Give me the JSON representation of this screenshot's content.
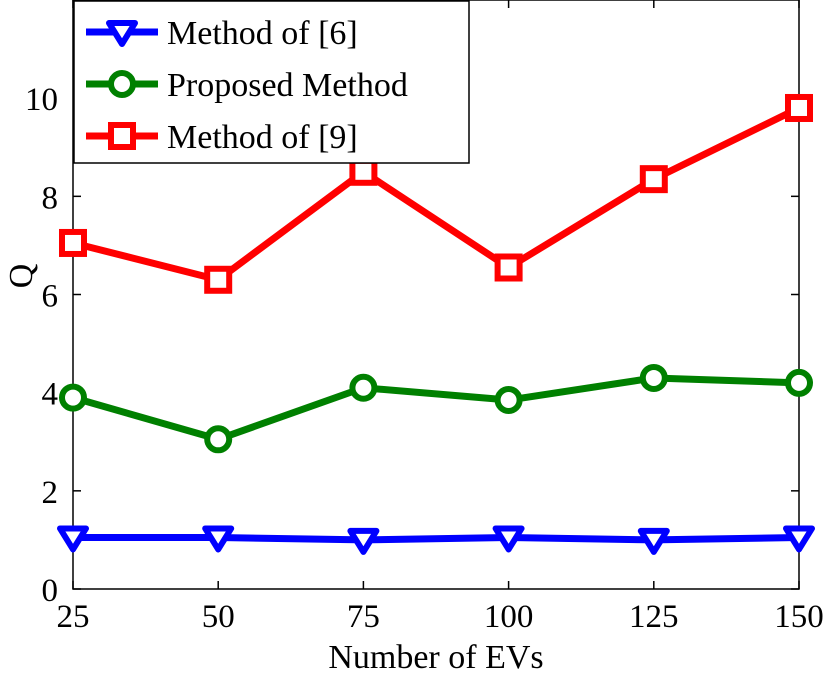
{
  "chart_data": {
    "type": "line",
    "xlabel": "Number of EVs",
    "ylabel": "Q",
    "x": [
      25,
      50,
      75,
      100,
      125,
      150
    ],
    "xlim": [
      25,
      150
    ],
    "ylim": [
      0,
      12
    ],
    "xticks": [
      "25",
      "50",
      "75",
      "100",
      "125",
      "150"
    ],
    "yticks": [
      "0",
      "2",
      "4",
      "6",
      "8",
      "10"
    ],
    "grid": false,
    "legend_position": "top-left",
    "series": [
      {
        "name": "Method of [6]",
        "color": "#0000ff",
        "marker": "triangle-down",
        "values": [
          1.05,
          1.05,
          1.0,
          1.05,
          1.0,
          1.05
        ]
      },
      {
        "name": "Proposed Method",
        "color": "#008000",
        "marker": "circle",
        "values": [
          3.9,
          3.05,
          4.1,
          3.85,
          4.3,
          4.2
        ]
      },
      {
        "name": "Method of [9]",
        "color": "#ff0000",
        "marker": "square",
        "values": [
          7.05,
          6.3,
          8.5,
          6.55,
          8.35,
          9.8
        ]
      }
    ]
  }
}
